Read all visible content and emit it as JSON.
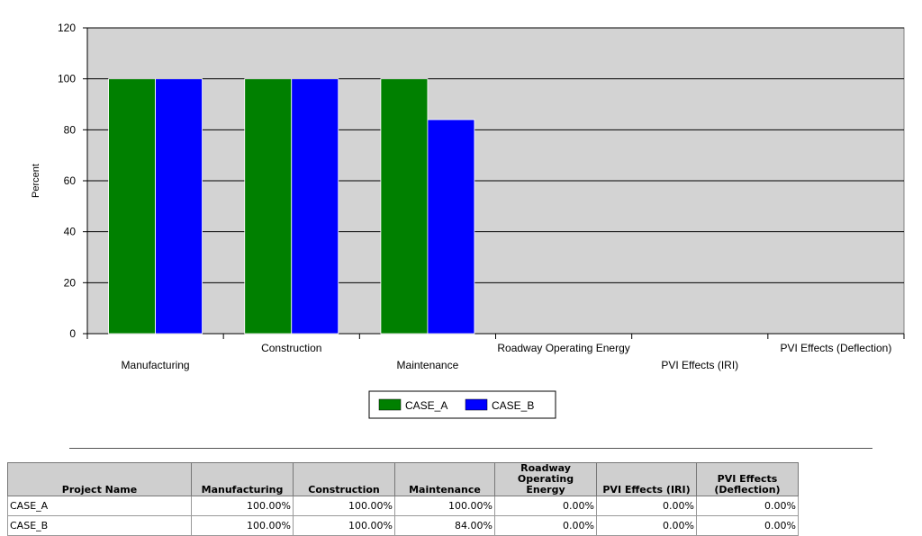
{
  "chart_data": {
    "type": "bar",
    "title": "",
    "xlabel": "",
    "ylabel": "Percent",
    "ylim": [
      0,
      120
    ],
    "yticks": [
      0,
      20,
      40,
      60,
      80,
      100,
      120
    ],
    "categories": [
      "Manufacturing",
      "Construction",
      "Maintenance",
      "Roadway Operating Energy",
      "PVI Effects (IRI)",
      "PVI Effects (Deflection)"
    ],
    "series": [
      {
        "name": "CASE_A",
        "color": "#008000",
        "values": [
          100,
          100,
          100,
          0,
          0,
          0
        ]
      },
      {
        "name": "CASE_B",
        "color": "#0000ff",
        "values": [
          100,
          100,
          84,
          0,
          0,
          0
        ]
      }
    ],
    "legend_position": "bottom",
    "grid": true
  },
  "table": {
    "headers": [
      "Project Name",
      "Manufacturing",
      "Construction",
      "Maintenance",
      "Roadway Operating Energy",
      "PVI Effects (IRI)",
      "PVI Effects (Deflection)"
    ],
    "rows": [
      [
        "CASE_A",
        "100.00%",
        "100.00%",
        "100.00%",
        "0.00%",
        "0.00%",
        "0.00%"
      ],
      [
        "CASE_B",
        "100.00%",
        "100.00%",
        "84.00%",
        "0.00%",
        "0.00%",
        "0.00%"
      ]
    ]
  }
}
